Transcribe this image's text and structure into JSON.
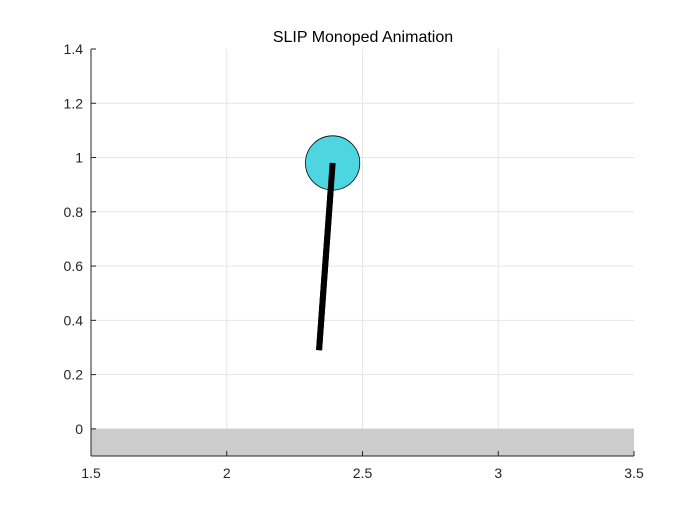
{
  "chart_data": {
    "type": "scatter",
    "title": "SLIP Monoped Animation",
    "xlabel": "",
    "ylabel": "",
    "xlim": [
      1.5,
      3.5
    ],
    "ylim": [
      -0.1,
      1.4
    ],
    "grid": true,
    "x_ticks": [
      1.5,
      2,
      2.5,
      3,
      3.5
    ],
    "x_tick_labels": [
      "1.5",
      "2",
      "2.5",
      "3",
      "3.5"
    ],
    "y_ticks": [
      0,
      0.2,
      0.4,
      0.6,
      0.8,
      1,
      1.2,
      1.4
    ],
    "y_tick_labels": [
      "0",
      "0.2",
      "0.4",
      "0.6",
      "0.8",
      "1",
      "1.2",
      "1.4"
    ],
    "ground": {
      "y_top": 0,
      "y_bottom": -0.1,
      "color": "#cccccc"
    },
    "leg": {
      "x": [
        2.34,
        2.39
      ],
      "y": [
        0.29,
        0.98
      ],
      "color": "#000000"
    },
    "body": {
      "center_x": 2.39,
      "center_y": 0.98,
      "radius": 0.1,
      "color": "#4dd5e0"
    },
    "colors": {
      "grid": "#e6e6e6",
      "axis": "#262626",
      "background": "#ffffff"
    }
  }
}
